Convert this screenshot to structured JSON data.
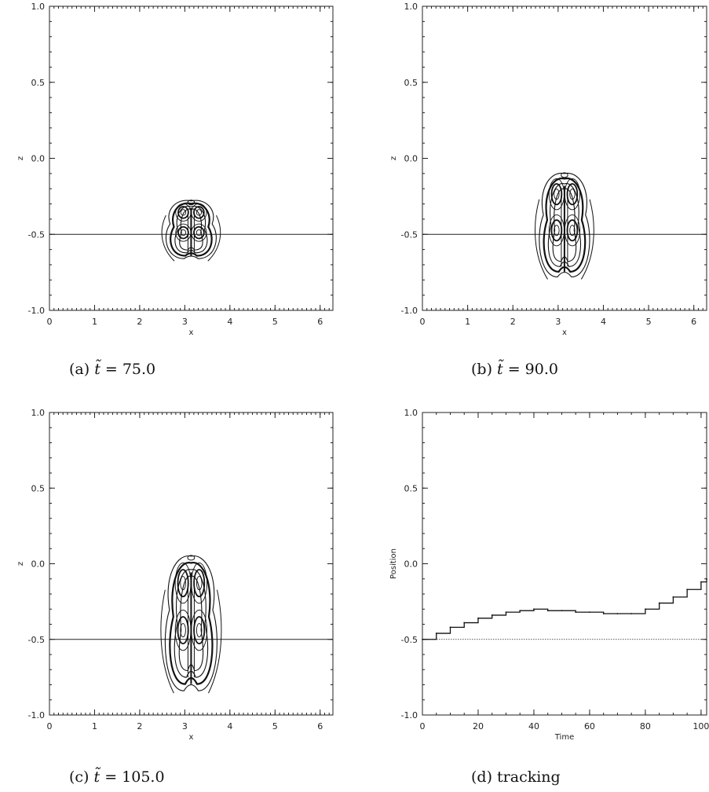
{
  "chart_data": [
    {
      "id": "a",
      "type": "contour",
      "caption_prefix": "(a)",
      "caption_var": "t̃",
      "caption_value": "= 75.0",
      "xlabel": "x",
      "ylabel": "z",
      "xlim": [
        0,
        6.2832
      ],
      "ylim": [
        -1.0,
        1.0
      ],
      "xticks": [
        "0",
        "1",
        "2",
        "3",
        "4",
        "5",
        "6"
      ],
      "yticks": [
        "-1.0",
        "-0.5",
        "0.0",
        "0.5",
        "1.0"
      ],
      "reference_line_z": -0.5,
      "plume": {
        "center_x": 3.14,
        "top_z": -0.28,
        "bottom_z": -0.66,
        "half_width": 0.62
      }
    },
    {
      "id": "b",
      "type": "contour",
      "caption_prefix": "(b)",
      "caption_var": "t̃",
      "caption_value": "= 90.0",
      "xlabel": "x",
      "ylabel": "z",
      "xlim": [
        0,
        6.2832
      ],
      "ylim": [
        -1.0,
        1.0
      ],
      "xticks": [
        "0",
        "1",
        "2",
        "3",
        "4",
        "5",
        "6"
      ],
      "yticks": [
        "-1.0",
        "-0.5",
        "0.0",
        "0.5",
        "1.0"
      ],
      "reference_line_z": -0.5,
      "plume": {
        "center_x": 3.14,
        "top_z": -0.1,
        "bottom_z": -0.78,
        "half_width": 0.62
      }
    },
    {
      "id": "c",
      "type": "contour",
      "caption_prefix": "(c)",
      "caption_var": "t̃",
      "caption_value": "= 105.0",
      "xlabel": "x",
      "ylabel": "z",
      "xlim": [
        0,
        6.2832
      ],
      "ylim": [
        -1.0,
        1.0
      ],
      "xticks": [
        "0",
        "1",
        "2",
        "3",
        "4",
        "5",
        "6"
      ],
      "yticks": [
        "-1.0",
        "-0.5",
        "0.0",
        "0.5",
        "1.0"
      ],
      "reference_line_z": -0.5,
      "plume": {
        "center_x": 3.14,
        "top_z": 0.05,
        "bottom_z": -0.84,
        "half_width": 0.64
      }
    },
    {
      "id": "d",
      "type": "line",
      "caption_prefix": "(d)",
      "caption_text": "tracking",
      "xlabel": "Time",
      "ylabel": "Position",
      "xlim": [
        0,
        102
      ],
      "ylim": [
        -1.0,
        1.0
      ],
      "xticks": [
        "0",
        "20",
        "40",
        "60",
        "80",
        "100"
      ],
      "yticks": [
        "-1.0",
        "-0.5",
        "0.0",
        "0.5",
        "1.0"
      ],
      "reference_line_z": -0.5,
      "series": [
        {
          "x": [
            0,
            5,
            10,
            15,
            20,
            25,
            30,
            35,
            40,
            45,
            50,
            55,
            60,
            65,
            70,
            75,
            80,
            85,
            90,
            95,
            100,
            102
          ],
          "y": [
            -0.5,
            -0.46,
            -0.42,
            -0.39,
            -0.36,
            -0.34,
            -0.32,
            -0.31,
            -0.3,
            -0.31,
            -0.31,
            -0.32,
            -0.32,
            -0.33,
            -0.33,
            -0.33,
            -0.3,
            -0.26,
            -0.22,
            -0.17,
            -0.12,
            -0.1
          ]
        }
      ]
    }
  ]
}
